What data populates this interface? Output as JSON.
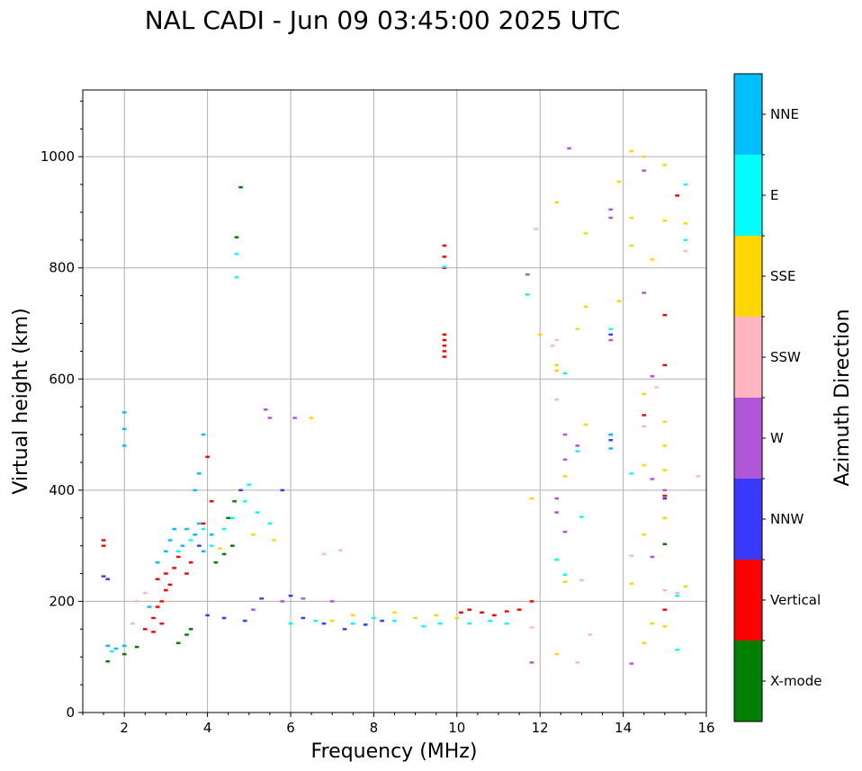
{
  "chart_data": {
    "type": "scatter",
    "title": "NAL CADI - Jun 09 03:45:00 2025 UTC",
    "xlabel": "Frequency (MHz)",
    "ylabel": "Virtual height (km)",
    "xlim": [
      1,
      16
    ],
    "ylim": [
      0,
      1120
    ],
    "x_ticks": [
      2,
      4,
      6,
      8,
      10,
      12,
      14,
      16
    ],
    "y_ticks": [
      0,
      200,
      400,
      600,
      800,
      1000
    ],
    "grid": true,
    "colorbar": {
      "label": "Azimuth Direction",
      "categories": [
        {
          "name": "X-mode",
          "color": "#008000"
        },
        {
          "name": "Vertical",
          "color": "#ff0000"
        },
        {
          "name": "NNW",
          "color": "#3a3aff"
        },
        {
          "name": "W",
          "color": "#b057d8"
        },
        {
          "name": "SSW",
          "color": "#ffb6c1"
        },
        {
          "name": "SSE",
          "color": "#ffd700"
        },
        {
          "name": "E",
          "color": "#00ffff"
        },
        {
          "name": "NNE",
          "color": "#00bfff"
        }
      ]
    },
    "series": [
      {
        "name": "X-mode",
        "points": [
          [
            1.6,
            92
          ],
          [
            2.0,
            105
          ],
          [
            2.3,
            118
          ],
          [
            3.3,
            125
          ],
          [
            3.5,
            140
          ],
          [
            3.6,
            150
          ],
          [
            4.2,
            270
          ],
          [
            4.4,
            285
          ],
          [
            4.6,
            300
          ],
          [
            4.65,
            380
          ],
          [
            4.7,
            855
          ],
          [
            4.8,
            945
          ],
          [
            15.0,
            303
          ],
          [
            4.5,
            350
          ]
        ]
      },
      {
        "name": "Vertical",
        "points": [
          [
            1.5,
            300
          ],
          [
            1.5,
            310
          ],
          [
            2.5,
            150
          ],
          [
            2.7,
            170
          ],
          [
            2.8,
            190
          ],
          [
            2.9,
            200
          ],
          [
            3.0,
            220
          ],
          [
            3.0,
            250
          ],
          [
            3.2,
            260
          ],
          [
            3.3,
            280
          ],
          [
            3.5,
            250
          ],
          [
            3.6,
            270
          ],
          [
            2.7,
            145
          ],
          [
            2.9,
            160
          ],
          [
            2.8,
            240
          ],
          [
            3.1,
            230
          ],
          [
            3.9,
            340
          ],
          [
            4.0,
            460
          ],
          [
            4.1,
            380
          ],
          [
            9.7,
            640
          ],
          [
            9.7,
            650
          ],
          [
            9.7,
            660
          ],
          [
            9.7,
            670
          ],
          [
            9.7,
            680
          ],
          [
            9.7,
            800
          ],
          [
            9.7,
            820
          ],
          [
            9.7,
            840
          ],
          [
            10.1,
            180
          ],
          [
            10.3,
            185
          ],
          [
            10.6,
            180
          ],
          [
            10.9,
            175
          ],
          [
            11.2,
            182
          ],
          [
            11.5,
            185
          ],
          [
            15.0,
            625
          ],
          [
            15.0,
            715
          ],
          [
            15.3,
            930
          ],
          [
            14.5,
            535
          ],
          [
            15.0,
            390
          ],
          [
            15.0,
            185
          ],
          [
            11.8,
            200
          ]
        ]
      },
      {
        "name": "NNW",
        "points": [
          [
            1.5,
            245
          ],
          [
            1.6,
            240
          ],
          [
            4.0,
            175
          ],
          [
            4.4,
            170
          ],
          [
            4.9,
            165
          ],
          [
            5.3,
            205
          ],
          [
            6.0,
            210
          ],
          [
            6.3,
            170
          ],
          [
            6.8,
            160
          ],
          [
            7.3,
            150
          ],
          [
            7.8,
            158
          ],
          [
            8.2,
            165
          ],
          [
            3.8,
            300
          ],
          [
            13.7,
            500
          ],
          [
            13.7,
            490
          ],
          [
            13.7,
            680
          ],
          [
            15.0,
            385
          ],
          [
            4.8,
            400
          ],
          [
            5.8,
            400
          ]
        ]
      },
      {
        "name": "W",
        "points": [
          [
            5.1,
            185
          ],
          [
            5.8,
            200
          ],
          [
            6.3,
            205
          ],
          [
            7.0,
            200
          ],
          [
            6.1,
            530
          ],
          [
            5.5,
            530
          ],
          [
            5.4,
            545
          ],
          [
            12.4,
            385
          ],
          [
            12.4,
            360
          ],
          [
            12.6,
            325
          ],
          [
            12.6,
            500
          ],
          [
            12.9,
            480
          ],
          [
            12.6,
            455
          ],
          [
            13.7,
            905
          ],
          [
            13.7,
            890
          ],
          [
            13.7,
            670
          ],
          [
            14.5,
            755
          ],
          [
            14.7,
            605
          ],
          [
            14.7,
            420
          ],
          [
            14.7,
            280
          ],
          [
            15.0,
            400
          ],
          [
            12.7,
            1015
          ],
          [
            14.2,
            88
          ],
          [
            11.8,
            90
          ],
          [
            14.5,
            975
          ],
          [
            11.7,
            788
          ]
        ]
      },
      {
        "name": "SSW",
        "points": [
          [
            2.2,
            160
          ],
          [
            2.3,
            200
          ],
          [
            2.5,
            215
          ],
          [
            7.2,
            292
          ],
          [
            6.8,
            285
          ],
          [
            12.4,
            670
          ],
          [
            12.4,
            563
          ],
          [
            13.0,
            238
          ],
          [
            13.2,
            140
          ],
          [
            12.9,
            90
          ],
          [
            14.2,
            282
          ],
          [
            15.0,
            220
          ],
          [
            15.5,
            830
          ],
          [
            15.8,
            425
          ],
          [
            14.8,
            585
          ],
          [
            14.5,
            515
          ],
          [
            11.8,
            153
          ],
          [
            11.9,
            870
          ],
          [
            12.3,
            660
          ],
          [
            15.3,
            215
          ]
        ]
      },
      {
        "name": "SSE",
        "points": [
          [
            8.5,
            180
          ],
          [
            9.0,
            170
          ],
          [
            9.5,
            175
          ],
          [
            10.0,
            170
          ],
          [
            6.5,
            530
          ],
          [
            7.0,
            165
          ],
          [
            7.5,
            175
          ],
          [
            11.8,
            385
          ],
          [
            12.0,
            680
          ],
          [
            12.4,
            625
          ],
          [
            12.4,
            615
          ],
          [
            12.6,
            425
          ],
          [
            12.6,
            235
          ],
          [
            12.4,
            105
          ],
          [
            12.9,
            690
          ],
          [
            13.1,
            730
          ],
          [
            13.1,
            518
          ],
          [
            13.1,
            862
          ],
          [
            12.4,
            918
          ],
          [
            14.2,
            840
          ],
          [
            14.2,
            890
          ],
          [
            14.2,
            1010
          ],
          [
            13.9,
            955
          ],
          [
            13.9,
            740
          ],
          [
            14.2,
            232
          ],
          [
            14.5,
            445
          ],
          [
            14.5,
            573
          ],
          [
            14.5,
            320
          ],
          [
            14.5,
            125
          ],
          [
            14.7,
            815
          ],
          [
            14.5,
            1000
          ],
          [
            15.0,
            985
          ],
          [
            15.0,
            885
          ],
          [
            15.5,
            880
          ],
          [
            15.0,
            480
          ],
          [
            15.0,
            523
          ],
          [
            15.0,
            436
          ],
          [
            15.0,
            350
          ],
          [
            15.0,
            155
          ],
          [
            15.5,
            227
          ],
          [
            14.7,
            160
          ],
          [
            4.3,
            295
          ],
          [
            5.1,
            320
          ],
          [
            5.6,
            310
          ]
        ]
      },
      {
        "name": "E",
        "points": [
          [
            1.7,
            110
          ],
          [
            2.0,
            120
          ],
          [
            6.0,
            160
          ],
          [
            6.6,
            165
          ],
          [
            7.5,
            160
          ],
          [
            8.0,
            170
          ],
          [
            8.5,
            165
          ],
          [
            9.2,
            155
          ],
          [
            9.6,
            160
          ],
          [
            10.3,
            160
          ],
          [
            10.8,
            165
          ],
          [
            11.2,
            160
          ],
          [
            3.3,
            290
          ],
          [
            3.6,
            310
          ],
          [
            3.9,
            330
          ],
          [
            4.1,
            300
          ],
          [
            4.4,
            330
          ],
          [
            4.6,
            350
          ],
          [
            4.9,
            380
          ],
          [
            5.2,
            360
          ],
          [
            5.5,
            340
          ],
          [
            5.0,
            410
          ],
          [
            4.7,
            783
          ],
          [
            4.7,
            825
          ],
          [
            11.7,
            752
          ],
          [
            12.4,
            275
          ],
          [
            12.6,
            248
          ],
          [
            12.6,
            610
          ],
          [
            13.0,
            352
          ],
          [
            12.9,
            470
          ],
          [
            13.7,
            690
          ],
          [
            14.2,
            430
          ],
          [
            15.3,
            113
          ],
          [
            15.5,
            850
          ],
          [
            15.5,
            950
          ],
          [
            15.3,
            210
          ],
          [
            9.7,
            802
          ]
        ]
      },
      {
        "name": "NNE",
        "points": [
          [
            1.6,
            120
          ],
          [
            1.8,
            115
          ],
          [
            2.0,
            120
          ],
          [
            2.0,
            540
          ],
          [
            2.0,
            510
          ],
          [
            2.0,
            480
          ],
          [
            3.2,
            330
          ],
          [
            3.4,
            300
          ],
          [
            3.5,
            330
          ],
          [
            3.7,
            320
          ],
          [
            3.9,
            290
          ],
          [
            4.1,
            320
          ],
          [
            3.8,
            340
          ],
          [
            3.7,
            400
          ],
          [
            3.8,
            430
          ],
          [
            3.9,
            500
          ],
          [
            2.6,
            190
          ],
          [
            2.8,
            270
          ],
          [
            3.0,
            290
          ],
          [
            3.1,
            310
          ],
          [
            13.7,
            475
          ],
          [
            13.7,
            500
          ]
        ]
      }
    ]
  }
}
